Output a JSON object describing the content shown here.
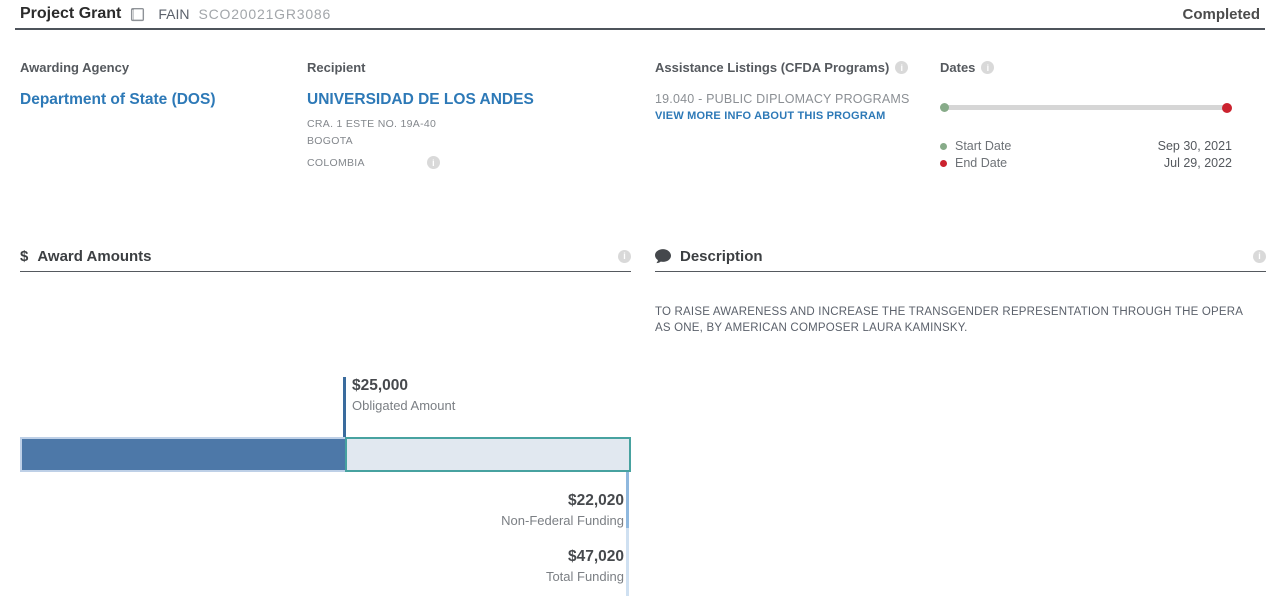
{
  "header": {
    "award_type": "Project Grant",
    "fain_label": "FAIN",
    "fain_value": "SCO20021GR3086",
    "status": "Completed"
  },
  "overview": {
    "awarding_agency": {
      "label": "Awarding Agency",
      "value": "Department of State (DOS)"
    },
    "recipient": {
      "label": "Recipient",
      "name": "UNIVERSIDAD DE LOS ANDES",
      "address_line1": "CRA. 1 ESTE NO. 19A-40",
      "address_line2": "BOGOTA",
      "country": "COLOMBIA"
    },
    "assistance_listings": {
      "label": "Assistance Listings (CFDA Programs)",
      "program": "19.040 - PUBLIC DIPLOMACY PROGRAMS",
      "link": "VIEW MORE INFO ABOUT THIS PROGRAM"
    },
    "dates": {
      "label": "Dates",
      "start_label": "Start Date",
      "start_value": "Sep 30, 2021",
      "end_label": "End Date",
      "end_value": "Jul 29, 2022",
      "progress_percent": 100
    }
  },
  "sections": {
    "award_amounts_title": "Award Amounts",
    "award_amounts_dollar": "$",
    "description_title": "Description"
  },
  "description": {
    "text": "TO RAISE AWARENESS AND INCREASE THE TRANSGENDER REPRESENTATION THROUGH THE OPERA AS ONE, BY AMERICAN COMPOSER LAURA KAMINSKY."
  },
  "chart_data": {
    "type": "bar",
    "title": "$ Award Amounts",
    "orientation": "horizontal-stacked",
    "items": [
      {
        "name": "Obligated Amount",
        "value": 25000,
        "display": "$25,000"
      },
      {
        "name": "Non-Federal Funding",
        "value": 22020,
        "display": "$22,020"
      },
      {
        "name": "Total Funding",
        "value": 47020,
        "display": "$47,020"
      }
    ],
    "xlim": [
      0,
      47020
    ]
  },
  "colors": {
    "link_blue": "#2d79b7",
    "bar_obligated": "#4d78a8",
    "bar_nonfederal_fill": "#e1e8f0",
    "bar_nonfederal_border": "#47a2a0",
    "start_green": "#87ab89",
    "end_red": "#cb222e"
  }
}
